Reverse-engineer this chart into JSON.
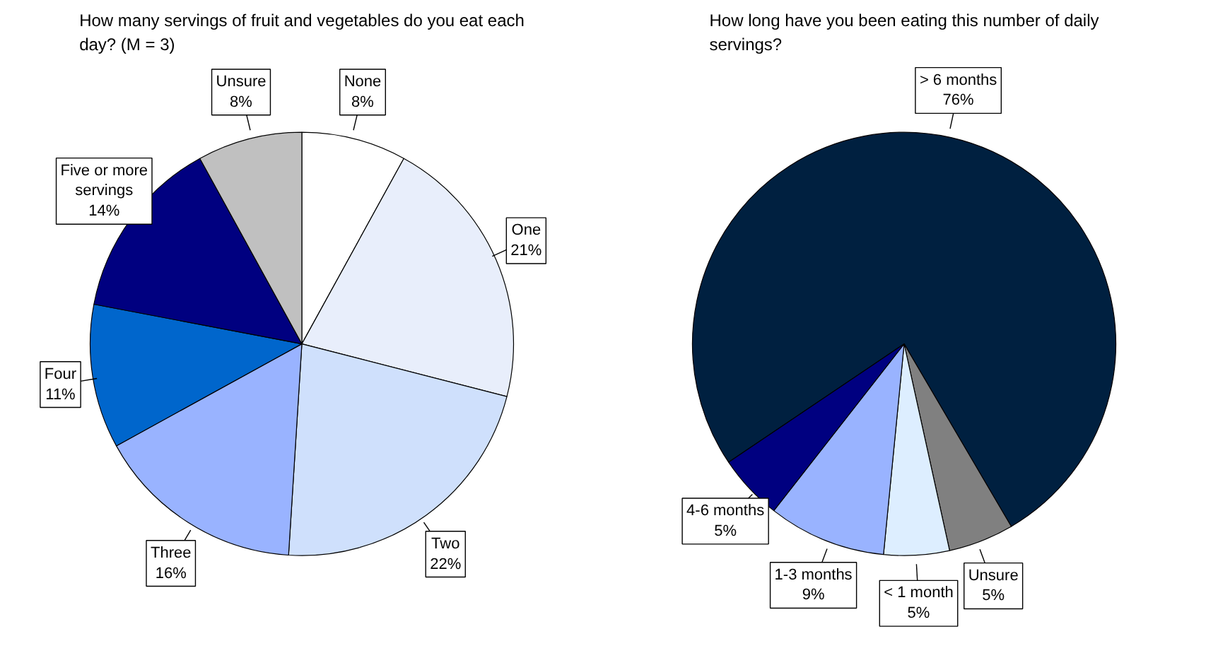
{
  "chart_data": [
    {
      "type": "pie",
      "title": "How many servings of fruit and vegetables do you eat each day? (M = 3)",
      "categories": [
        "None",
        "One",
        "Two",
        "Three",
        "Four",
        "Five or more servings",
        "Unsure"
      ],
      "values": [
        8,
        21,
        22,
        16,
        11,
        14,
        8
      ],
      "colors": [
        "#ffffff",
        "#e8eefb",
        "#cfe0fc",
        "#99b3ff",
        "#0066cc",
        "#000080",
        "#c0c0c0"
      ],
      "value_labels": [
        "8%",
        "21%",
        "22%",
        "16%",
        "11%",
        "14%",
        "8%"
      ]
    },
    {
      "type": "pie",
      "title": "How long have you been eating this number of daily servings?",
      "categories": [
        "> 6 months",
        "Unsure",
        "< 1 month",
        "1-3 months",
        "4-6 months"
      ],
      "values": [
        76,
        5,
        5,
        9,
        5
      ],
      "colors": [
        "#002040",
        "#808080",
        "#ddeeff",
        "#99b3ff",
        "#000080"
      ],
      "value_labels": [
        "76%",
        "5%",
        "5%",
        "9%",
        "5%"
      ]
    }
  ]
}
